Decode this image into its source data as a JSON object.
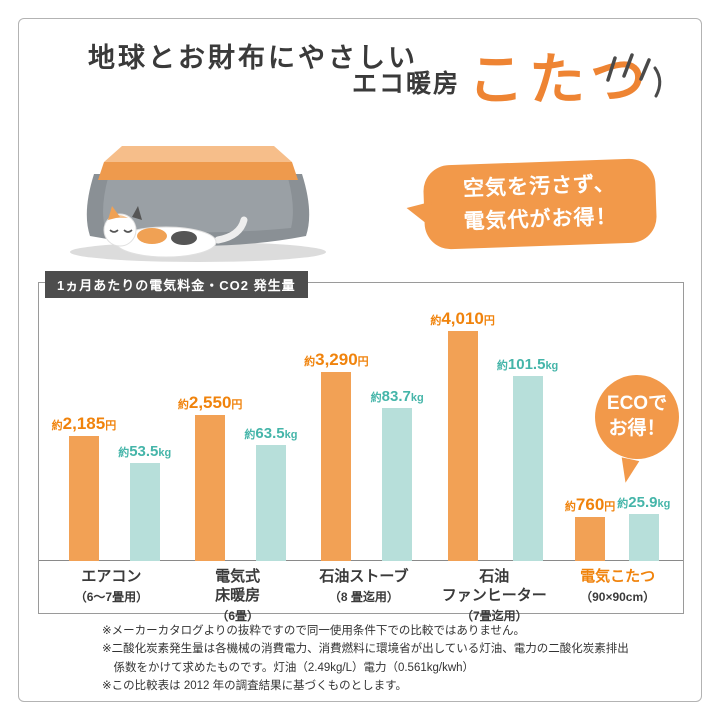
{
  "colors": {
    "accent_orange": "#f2994a",
    "orange_text": "#f0830c",
    "teal_bar": "#b7dfda",
    "teal_text": "#45b5a9",
    "dark_label": "#4d4d4d"
  },
  "header": {
    "catch": "地球とお財布にやさしい",
    "sub": "エコ暖房",
    "product": "こたつ"
  },
  "bubble": {
    "line1": "空気を汚さず、",
    "line2": "電気代がお得！"
  },
  "chart_label": "1ヵ月あたりの電気料金・CO2 発生量",
  "eco_badge": {
    "line1": "ECOで",
    "line2": "お得！"
  },
  "chart_data": {
    "type": "bar",
    "title": "1ヵ月あたりの電気料金・CO2発生量",
    "legend_position": "none",
    "grid": false,
    "categories": [
      {
        "name": "エアコン",
        "sub": "（6〜7畳用）",
        "highlight": false
      },
      {
        "name": "電気式\n床暖房",
        "sub": "（6畳）",
        "highlight": false
      },
      {
        "name": "石油ストーブ",
        "sub": "（8 畳迄用）",
        "highlight": false
      },
      {
        "name": "石油\nファンヒーター",
        "sub": "（7畳迄用）",
        "highlight": false
      },
      {
        "name": "電気こたつ",
        "sub": "（90×90cm）",
        "highlight": true
      }
    ],
    "series": [
      {
        "name": "電気料金（円/月）",
        "prefix": "約",
        "unit": "円",
        "values": [
          2185,
          2550,
          3290,
          4010,
          760
        ],
        "display": [
          "2,185",
          "2,550",
          "3,290",
          "4,010",
          "760"
        ],
        "bar_color": "#f2a155",
        "label_color": "#f0830c"
      },
      {
        "name": "CO2発生量（kg/月）",
        "prefix": "約",
        "unit": "kg",
        "values": [
          53.5,
          63.5,
          83.7,
          101.5,
          25.9
        ],
        "display": [
          "53.5",
          "63.5",
          "83.7",
          "101.5",
          "25.9"
        ],
        "bar_color": "#b7dfda",
        "label_color": "#45b5a9"
      }
    ]
  },
  "footnotes": [
    "※メーカーカタログよりの抜粋ですので同一使用条件下での比較ではありません。",
    "※二酸化炭素発生量は各機械の消費電力、消費燃料に環境省が出している灯油、電力の二酸化炭素排出係数をかけて求めたものです。灯油（2.49kg/L）電力（0.561kg/kwh）",
    "※この比較表は 2012 年の調査結果に基づくものとします。"
  ]
}
